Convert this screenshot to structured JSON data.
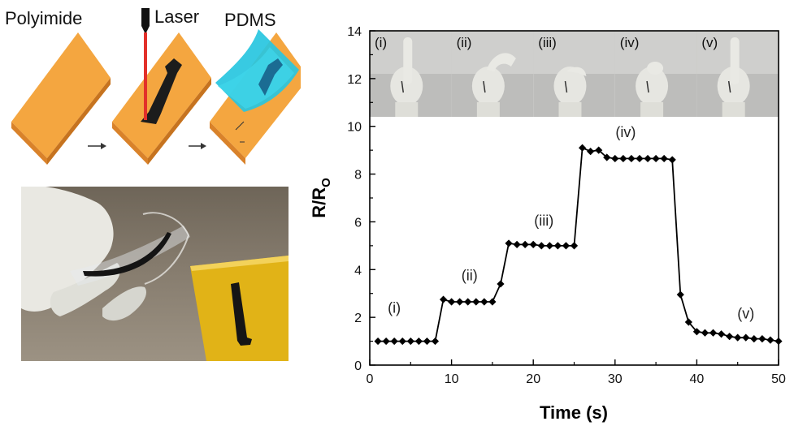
{
  "panel_a": {
    "labels": {
      "polyimide": "Polyimide",
      "laser": "Laser",
      "pdms": "PDMS"
    }
  },
  "chart_data": {
    "type": "line",
    "xlabel": "Time (s)",
    "ylabel": "R/RO",
    "xlim": [
      0,
      50
    ],
    "ylim": [
      0,
      14
    ],
    "xticks": [
      0,
      10,
      20,
      30,
      40,
      50
    ],
    "yticks": [
      0,
      2,
      4,
      6,
      8,
      10,
      12,
      14
    ],
    "grid": false,
    "series": [
      {
        "marker": "diamond",
        "color": "#000000",
        "x": [
          1,
          2,
          3,
          4,
          5,
          6,
          7,
          8,
          9,
          10,
          11,
          12,
          13,
          14,
          15,
          16,
          17,
          18,
          19,
          20,
          21,
          22,
          23,
          24,
          25,
          26,
          27,
          28,
          29,
          30,
          31,
          32,
          33,
          34,
          35,
          36,
          37,
          38,
          39,
          40,
          41,
          42,
          43,
          44,
          45,
          46,
          47,
          48,
          49,
          50
        ],
        "y": [
          1.0,
          1.0,
          1.0,
          1.0,
          1.0,
          1.0,
          1.0,
          1.0,
          2.75,
          2.65,
          2.65,
          2.65,
          2.65,
          2.65,
          2.65,
          3.4,
          5.1,
          5.05,
          5.05,
          5.05,
          5.0,
          5.0,
          5.0,
          5.0,
          5.0,
          9.1,
          8.95,
          9.0,
          8.7,
          8.65,
          8.65,
          8.65,
          8.65,
          8.65,
          8.65,
          8.65,
          8.6,
          2.95,
          1.8,
          1.4,
          1.35,
          1.35,
          1.3,
          1.2,
          1.15,
          1.15,
          1.1,
          1.1,
          1.05,
          1.0
        ]
      }
    ],
    "annotations": [
      {
        "text": "(i)",
        "x": 3,
        "y": 2.2
      },
      {
        "text": "(ii)",
        "x": 12.2,
        "y": 3.55
      },
      {
        "text": "(iii)",
        "x": 21.3,
        "y": 5.85
      },
      {
        "text": "(iv)",
        "x": 31.3,
        "y": 9.55
      },
      {
        "text": "(v)",
        "x": 46,
        "y": 1.95
      }
    ]
  },
  "inset": {
    "labels": [
      "(i)",
      "(ii)",
      "(iii)",
      "(iv)",
      "(v)"
    ]
  }
}
